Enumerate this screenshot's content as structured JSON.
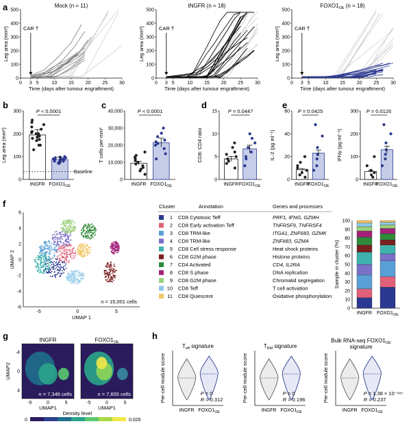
{
  "panel_labels": [
    "a",
    "b",
    "c",
    "d",
    "e",
    "f",
    "g",
    "h"
  ],
  "colors": {
    "blue": "#2b3990",
    "light_blue": "#c5cde8",
    "black": "#111111",
    "grey": "#888888",
    "light_grey": "#cfcfcf"
  },
  "panel_a": {
    "titles": [
      "Mock (n = 11)",
      "tNGFR (n = 18)",
      "FOXO1OE (n = 18)"
    ],
    "annotation": "CAR T",
    "xlabel": "Time (days after tumour engraftment)",
    "ylabel": "Leg area (mm²)",
    "xticks": [
      "0",
      "3",
      "5",
      "10",
      "15",
      "20",
      "25",
      "30"
    ],
    "yticks": [
      "0",
      "100",
      "200",
      "300",
      "400",
      "500"
    ]
  },
  "panel_b": {
    "ylabel": "Leg area (mm²)",
    "yticks": [
      "0",
      "100",
      "200",
      "300"
    ],
    "pval": "P < 0.0001",
    "baseline": "Baseline",
    "categories": [
      "tNGFR",
      "FOXO1OE"
    ]
  },
  "panel_c": {
    "ylabel": "T cells per mm²",
    "yticks": [
      "0",
      "10,000",
      "20,000",
      "30,000",
      "40,000"
    ],
    "pval": "P < 0.0001",
    "categories": [
      "tNGFR",
      "FOXO1OE"
    ]
  },
  "panel_d": {
    "ylabel": "CD8: CD4 ratio",
    "yticks": [
      "0",
      "5",
      "10",
      "15"
    ],
    "pval": "P = 0.0447",
    "categories": [
      "tNGFR",
      "FOXO1OE"
    ]
  },
  "panel_e1": {
    "ylabel": "IL-2 (pg ml⁻¹)",
    "yticks": [
      "0",
      "20",
      "40",
      "60"
    ],
    "pval": "P = 0.0425",
    "categories": [
      "tNGFR",
      "FOXO1OE"
    ]
  },
  "panel_e2": {
    "ylabel": "IFNγ (pg ml⁻¹)",
    "yticks": [
      "0",
      "100",
      "200",
      "300"
    ],
    "pval": "P = 0.0126",
    "categories": [
      "tNGFR",
      "FOXO1OE"
    ]
  },
  "panel_f": {
    "umap_xlabel": "UMAP 1",
    "umap_ylabel": "UMAP 2",
    "umap_xticks": [
      "-5",
      "0",
      "5"
    ],
    "umap_yticks": [
      "-6",
      "-4",
      "-2",
      "0",
      "2",
      "4",
      "6"
    ],
    "cells_note": "n = 15,001 cells",
    "table_headers": [
      "Cluster",
      "Annotation",
      "Genes and processes"
    ],
    "clusters": [
      {
        "num": "1",
        "color": "#2b3990",
        "annotation": "CD8 Cytotoxic Teff",
        "genes": "PRF1, IFNG, GZMH"
      },
      {
        "num": "2",
        "color": "#e0607a",
        "annotation": "CD8 Early activation Teff",
        "genes": "TNFRSF9, TNFRSF4"
      },
      {
        "num": "3",
        "color": "#5aa0d6",
        "annotation": "CD8 TRM-like",
        "genes": "ITGA1, ZNF683, GZMK"
      },
      {
        "num": "4",
        "color": "#7a70c8",
        "annotation": "CD8 TRM-like",
        "genes": "ZNF683, GZMA"
      },
      {
        "num": "5",
        "color": "#3fb2ae",
        "annotation": "CD8 Cell stress response",
        "genes": "Heat shock proteins"
      },
      {
        "num": "6",
        "color": "#7a1f1f",
        "annotation": "CD8 G2M phase",
        "genes": "Histone proteins"
      },
      {
        "num": "7",
        "color": "#2e8b3a",
        "annotation": "CD4 Activated",
        "genes": "CD4, IL2RA"
      },
      {
        "num": "8",
        "color": "#a2207a",
        "annotation": "CD8 S phase",
        "genes": "DNA replication"
      },
      {
        "num": "9",
        "color": "#9ad07a",
        "annotation": "CD8 G2M phase",
        "genes": "Chromatid segregation"
      },
      {
        "num": "10",
        "color": "#8ec8e8",
        "annotation": "CD8 Teff",
        "genes": "T cell activation"
      },
      {
        "num": "11",
        "color": "#efc86a",
        "annotation": "CD8 Quiescent",
        "genes": "Oxidative phosphorylation"
      }
    ],
    "stack_ylabel": "Sample in cluster (%)",
    "stack_yticks": [
      "0",
      "10",
      "20",
      "30",
      "40",
      "50",
      "60",
      "70",
      "80",
      "90",
      "100"
    ],
    "stack_categories": [
      "tNGFR",
      "FOXO1OE"
    ]
  },
  "panel_g": {
    "titles": [
      "tNGFR",
      "FOXO1OE"
    ],
    "xlabel": "UMAP1",
    "ylabel": "UMAP2",
    "xticks": [
      "-5",
      "0",
      "5"
    ],
    "yticks": [
      "-4",
      "0",
      "4"
    ],
    "cells": [
      "n = 7,346 cells",
      "n = 7,655 cells"
    ],
    "density_label": "Density level",
    "density_min": "0",
    "density_max": "0.026"
  },
  "panel_h": {
    "titles": [
      "Teff signature",
      "TRM signature",
      "Bulk RNA-seq FOXO1OE signature"
    ],
    "ylabel": "Per-cell module score",
    "stats": [
      {
        "p": "P = 0",
        "r": "R = 0.312"
      },
      {
        "p": "P = 0",
        "r": "R = 0.196"
      },
      {
        "p": "P = 1.38 × 10⁻¹⁸⁵",
        "r": "R = 0.237"
      }
    ],
    "categories": [
      "tNGFR",
      "FOXO1OE"
    ]
  },
  "chart_data": [
    {
      "type": "line",
      "title": "Mock (n = 11)",
      "xlabel": "Time (days after tumour engraftment)",
      "ylabel": "Leg area (mm²)",
      "xlim": [
        0,
        30
      ],
      "ylim": [
        0,
        500
      ],
      "series": [
        {
          "values": [
            [
              3,
              20
            ],
            [
              7,
              60
            ],
            [
              11,
              150
            ],
            [
              15,
              260
            ],
            [
              18,
              390
            ]
          ]
        },
        {
          "values": [
            [
              3,
              15
            ],
            [
              8,
              50
            ],
            [
              12,
              120
            ],
            [
              16,
              230
            ],
            [
              19,
              340
            ]
          ]
        },
        {
          "values": [
            [
              3,
              10
            ],
            [
              9,
              40
            ],
            [
              13,
              100
            ],
            [
              17,
              180
            ],
            [
              20,
              280
            ]
          ]
        },
        {
          "values": [
            [
              3,
              12
            ],
            [
              10,
              50
            ],
            [
              14,
              110
            ],
            [
              18,
              200
            ],
            [
              21,
              300
            ]
          ]
        }
      ]
    },
    {
      "type": "line",
      "title": "tNGFR (n = 18)",
      "xlabel": "Time (days after tumour engraftment)",
      "ylabel": "Leg area (mm²)",
      "xlim": [
        0,
        30
      ],
      "ylim": [
        0,
        500
      ],
      "series": [
        {
          "values": [
            [
              3,
              10
            ],
            [
              10,
              30
            ],
            [
              15,
              100
            ],
            [
              20,
              230
            ],
            [
              25,
              380
            ]
          ]
        },
        {
          "values": [
            [
              3,
              8
            ],
            [
              12,
              40
            ],
            [
              17,
              140
            ],
            [
              22,
              300
            ],
            [
              26,
              460
            ]
          ]
        },
        {
          "values": [
            [
              3,
              6
            ],
            [
              13,
              30
            ],
            [
              18,
              110
            ],
            [
              23,
              240
            ],
            [
              27,
              350
            ]
          ]
        }
      ]
    },
    {
      "type": "line",
      "title": "FOXO1OE (n = 18)",
      "xlabel": "Time (days after tumour engraftment)",
      "ylabel": "Leg area (mm²)",
      "xlim": [
        0,
        30
      ],
      "ylim": [
        0,
        500
      ],
      "series": [
        {
          "values": [
            [
              3,
              5
            ],
            [
              10,
              10
            ],
            [
              15,
              25
            ],
            [
              20,
              50
            ],
            [
              25,
              80
            ],
            [
              30,
              110
            ]
          ]
        },
        {
          "values": [
            [
              3,
              6
            ],
            [
              12,
              12
            ],
            [
              18,
              30
            ],
            [
              24,
              60
            ],
            [
              29,
              90
            ]
          ]
        }
      ]
    },
    {
      "type": "scatter",
      "ylabel": "Leg area (mm²)",
      "categories": [
        "tNGFR",
        "FOXO1OE"
      ],
      "ylim": [
        0,
        300
      ],
      "values": [
        [
          130,
          150,
          170,
          180,
          185,
          190,
          195,
          200,
          205,
          210,
          220,
          230,
          240,
          250,
          260,
          150,
          175,
          200
        ],
        [
          70,
          75,
          80,
          82,
          85,
          88,
          90,
          92,
          95,
          98,
          100,
          85,
          80,
          78,
          90,
          95,
          72,
          88
        ]
      ],
      "mean": [
        195,
        87
      ]
    },
    {
      "type": "scatter",
      "ylabel": "T cells per mm²",
      "categories": [
        "tNGFR",
        "FOXO1OE"
      ],
      "ylim": [
        0,
        40000
      ],
      "values": [
        [
          3000,
          5000,
          6000,
          7000,
          8000,
          9000,
          10000,
          11000,
          12000,
          13000,
          14000,
          16000
        ],
        [
          12000,
          15000,
          18000,
          20000,
          21000,
          22000,
          23000,
          25000,
          27000,
          30000
        ]
      ],
      "mean": [
        9500,
        21500
      ]
    },
    {
      "type": "scatter",
      "ylabel": "CD8: CD4 ratio",
      "categories": [
        "tNGFR",
        "FOXO1OE"
      ],
      "ylim": [
        0,
        15
      ],
      "values": [
        [
          2.5,
          3.5,
          4,
          4.5,
          5,
          5.5,
          6,
          7,
          8
        ],
        [
          3,
          4.5,
          5,
          6,
          7,
          8,
          9,
          10
        ]
      ],
      "mean": [
        4.5,
        6.7
      ]
    },
    {
      "type": "scatter",
      "ylabel": "IL-2 (pg ml⁻¹)",
      "categories": [
        "tNGFR",
        "FOXO1OE"
      ],
      "ylim": [
        0,
        60
      ],
      "values": [
        [
          2,
          4,
          6,
          8,
          10,
          12,
          15,
          20
        ],
        [
          8,
          12,
          18,
          22,
          28,
          38,
          48
        ]
      ],
      "mean": [
        8.5,
        23
      ]
    },
    {
      "type": "scatter",
      "ylabel": "IFNγ (pg ml⁻¹)",
      "categories": [
        "tNGFR",
        "FOXO1OE"
      ],
      "ylim": [
        0,
        300
      ],
      "values": [
        [
          10,
          20,
          30,
          40,
          60,
          100
        ],
        [
          60,
          90,
          110,
          130,
          160,
          200,
          240
        ]
      ],
      "mean": [
        35,
        130
      ]
    },
    {
      "type": "bar",
      "ylabel": "Sample in cluster (%)",
      "categories": [
        "tNGFR",
        "FOXO1OE"
      ],
      "ylim": [
        0,
        100
      ],
      "series": [
        {
          "name": "1",
          "values": [
            12,
            24
          ]
        },
        {
          "name": "2",
          "values": [
            10,
            12
          ]
        },
        {
          "name": "3",
          "values": [
            16,
            18
          ]
        },
        {
          "name": "4",
          "values": [
            12,
            8
          ]
        },
        {
          "name": "5",
          "values": [
            14,
            10
          ]
        },
        {
          "name": "6",
          "values": [
            8,
            6
          ]
        },
        {
          "name": "7",
          "values": [
            9,
            7
          ]
        },
        {
          "name": "8",
          "values": [
            7,
            6
          ]
        },
        {
          "name": "9",
          "values": [
            5,
            4
          ]
        },
        {
          "name": "10",
          "values": [
            4,
            3
          ]
        },
        {
          "name": "11",
          "values": [
            3,
            2
          ]
        }
      ]
    }
  ]
}
